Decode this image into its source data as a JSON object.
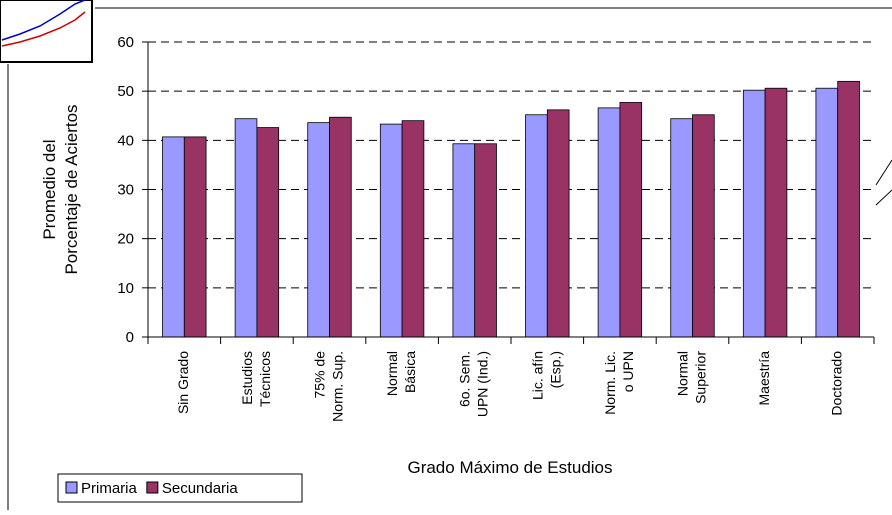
{
  "chart_data": {
    "type": "bar",
    "y_title": [
      "Promedio del",
      "Porcentaje de Aciertos"
    ],
    "x_title": "Grado Máximo de Estudios",
    "categories": [
      "Sin Grado",
      "Estudios\nTécnicos",
      "75% de\nNorm. Sup.",
      "Normal\nBásica",
      "6o. Sem.\nUPN (Ind.)",
      "Lic. afín\n(Esp.)",
      "Norm. Lic.\no UPN",
      "Normal\nSuperior",
      "Maestría",
      "Doctorado"
    ],
    "series": [
      {
        "name": "Primaria",
        "color": "#9999ff",
        "values": [
          40.7,
          44.4,
          43.6,
          43.3,
          39.3,
          45.2,
          46.6,
          44.4,
          50.2,
          50.6
        ]
      },
      {
        "name": "Secundaria",
        "color": "#993366",
        "values": [
          40.7,
          42.6,
          44.7,
          44.0,
          39.3,
          46.2,
          47.7,
          45.2,
          50.6,
          52.0
        ]
      }
    ],
    "ylim": [
      0,
      60
    ],
    "yticks": [
      0,
      10,
      20,
      30,
      40,
      50,
      60
    ],
    "grid": true
  }
}
